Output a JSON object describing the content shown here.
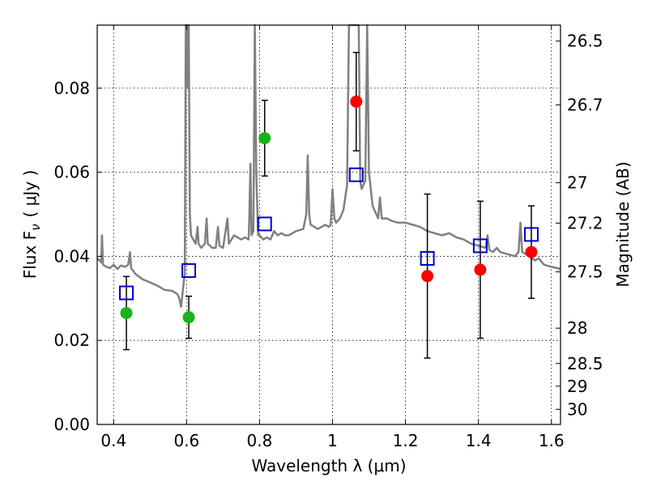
{
  "chart_data": {
    "type": "scatter",
    "xlabel": "Wavelength  λ (μm)",
    "ylabel": "Flux  F",
    "ylabel_sub": "ν",
    "ylabel_unit": "( μJy )",
    "y2label": "Magnitude (AB)",
    "xlim": [
      0.355,
      1.625
    ],
    "ylim": [
      0.0,
      0.095
    ],
    "grid": true,
    "x_ticks": [
      0.4,
      0.6,
      0.8,
      1.0,
      1.2,
      1.4,
      1.6
    ],
    "x_tick_labels": [
      "0.4",
      "0.6",
      "0.8",
      "1",
      "1.2",
      "1.4",
      "1.6"
    ],
    "y_ticks": [
      0.0,
      0.02,
      0.04,
      0.06,
      0.08
    ],
    "y_tick_labels": [
      "0.00",
      "0.02",
      "0.04",
      "0.06",
      "0.08"
    ],
    "mag_ticks": [
      {
        "label": "26.5",
        "flux": 0.0912
      },
      {
        "label": "26.7",
        "flux": 0.076
      },
      {
        "label": "27",
        "flux": 0.0575
      },
      {
        "label": "27.2",
        "flux": 0.0479
      },
      {
        "label": "27.5",
        "flux": 0.0363
      },
      {
        "label": "28",
        "flux": 0.0229
      },
      {
        "label": "28.5",
        "flux": 0.0145
      },
      {
        "label": "29",
        "flux": 0.0091
      },
      {
        "label": "30",
        "flux": 0.0036
      }
    ],
    "colors": {
      "spectrum": "#808080",
      "observed_optical": "#1ab31a",
      "observed_nir": "#ff0000",
      "model": "#0000cc",
      "errorbar": "#000000"
    },
    "series": [
      {
        "key": "observed_optical",
        "points": [
          {
            "x": 0.435,
            "y": 0.0265,
            "err": 0.0087
          },
          {
            "x": 0.606,
            "y": 0.0255,
            "err": 0.005
          },
          {
            "x": 0.814,
            "y": 0.0681,
            "err": 0.009
          }
        ]
      },
      {
        "key": "observed_nir",
        "points": [
          {
            "x": 1.065,
            "y": 0.0768,
            "err": 0.0117
          },
          {
            "x": 1.26,
            "y": 0.0353,
            "err": 0.0195
          },
          {
            "x": 1.405,
            "y": 0.0368,
            "err": 0.0163
          },
          {
            "x": 1.545,
            "y": 0.041,
            "err": 0.011
          }
        ]
      },
      {
        "key": "model",
        "points": [
          {
            "x": 0.435,
            "y": 0.0313
          },
          {
            "x": 0.606,
            "y": 0.0366
          },
          {
            "x": 0.814,
            "y": 0.0477
          },
          {
            "x": 1.065,
            "y": 0.0594
          },
          {
            "x": 1.26,
            "y": 0.0395
          },
          {
            "x": 1.405,
            "y": 0.0425
          },
          {
            "x": 1.545,
            "y": 0.0452
          }
        ]
      }
    ],
    "spectrum": [
      [
        0.355,
        0.0395
      ],
      [
        0.362,
        0.039
      ],
      [
        0.366,
        0.0385
      ],
      [
        0.368,
        0.045
      ],
      [
        0.371,
        0.038
      ],
      [
        0.38,
        0.0375
      ],
      [
        0.39,
        0.0372
      ],
      [
        0.4,
        0.038
      ],
      [
        0.41,
        0.037
      ],
      [
        0.42,
        0.0378
      ],
      [
        0.432,
        0.0375
      ],
      [
        0.44,
        0.038
      ],
      [
        0.445,
        0.041
      ],
      [
        0.448,
        0.0372
      ],
      [
        0.46,
        0.0358
      ],
      [
        0.48,
        0.0345
      ],
      [
        0.5,
        0.0338
      ],
      [
        0.52,
        0.033
      ],
      [
        0.54,
        0.032
      ],
      [
        0.56,
        0.0318
      ],
      [
        0.575,
        0.031
      ],
      [
        0.58,
        0.03
      ],
      [
        0.585,
        0.028
      ],
      [
        0.59,
        0.032
      ],
      [
        0.595,
        0.036
      ],
      [
        0.598,
        0.095
      ],
      [
        0.601,
        0.095
      ],
      [
        0.603,
        0.08
      ],
      [
        0.606,
        0.095
      ],
      [
        0.609,
        0.05
      ],
      [
        0.612,
        0.045
      ],
      [
        0.618,
        0.044
      ],
      [
        0.625,
        0.043
      ],
      [
        0.63,
        0.047
      ],
      [
        0.633,
        0.043
      ],
      [
        0.64,
        0.042
      ],
      [
        0.65,
        0.043
      ],
      [
        0.655,
        0.049
      ],
      [
        0.658,
        0.043
      ],
      [
        0.67,
        0.042
      ],
      [
        0.68,
        0.042
      ],
      [
        0.686,
        0.047
      ],
      [
        0.69,
        0.0425
      ],
      [
        0.7,
        0.042
      ],
      [
        0.712,
        0.049
      ],
      [
        0.716,
        0.043
      ],
      [
        0.73,
        0.045
      ],
      [
        0.75,
        0.044
      ],
      [
        0.76,
        0.0445
      ],
      [
        0.77,
        0.044
      ],
      [
        0.772,
        0.049
      ],
      [
        0.775,
        0.062
      ],
      [
        0.778,
        0.045
      ],
      [
        0.783,
        0.046
      ],
      [
        0.787,
        0.095
      ],
      [
        0.791,
        0.06
      ],
      [
        0.796,
        0.045
      ],
      [
        0.8,
        0.045
      ],
      [
        0.81,
        0.044
      ],
      [
        0.82,
        0.0445
      ],
      [
        0.83,
        0.044
      ],
      [
        0.84,
        0.046
      ],
      [
        0.85,
        0.045
      ],
      [
        0.86,
        0.0455
      ],
      [
        0.87,
        0.045
      ],
      [
        0.88,
        0.045
      ],
      [
        0.89,
        0.0455
      ],
      [
        0.9,
        0.046
      ],
      [
        0.92,
        0.0465
      ],
      [
        0.928,
        0.05
      ],
      [
        0.932,
        0.064
      ],
      [
        0.936,
        0.05
      ],
      [
        0.94,
        0.0475
      ],
      [
        0.96,
        0.0465
      ],
      [
        0.97,
        0.047
      ],
      [
        0.98,
        0.0475
      ],
      [
        0.99,
        0.047
      ],
      [
        0.995,
        0.0475
      ],
      [
        1.0,
        0.056
      ],
      [
        1.005,
        0.049
      ],
      [
        1.01,
        0.048
      ],
      [
        1.02,
        0.049
      ],
      [
        1.03,
        0.051
      ],
      [
        1.04,
        0.057
      ],
      [
        1.045,
        0.095
      ],
      [
        1.055,
        0.095
      ],
      [
        1.065,
        0.095
      ],
      [
        1.072,
        0.095
      ],
      [
        1.076,
        0.058
      ],
      [
        1.08,
        0.056
      ],
      [
        1.09,
        0.058
      ],
      [
        1.095,
        0.095
      ],
      [
        1.1,
        0.06
      ],
      [
        1.11,
        0.052
      ],
      [
        1.12,
        0.05
      ],
      [
        1.125,
        0.049
      ],
      [
        1.13,
        0.054
      ],
      [
        1.135,
        0.049
      ],
      [
        1.15,
        0.049
      ],
      [
        1.16,
        0.0485
      ],
      [
        1.18,
        0.048
      ],
      [
        1.2,
        0.048
      ],
      [
        1.22,
        0.0475
      ],
      [
        1.24,
        0.047
      ],
      [
        1.26,
        0.046
      ],
      [
        1.28,
        0.0455
      ],
      [
        1.3,
        0.045
      ],
      [
        1.32,
        0.0455
      ],
      [
        1.34,
        0.0445
      ],
      [
        1.36,
        0.044
      ],
      [
        1.38,
        0.043
      ],
      [
        1.4,
        0.0425
      ],
      [
        1.42,
        0.042
      ],
      [
        1.425,
        0.045
      ],
      [
        1.43,
        0.0415
      ],
      [
        1.44,
        0.041
      ],
      [
        1.45,
        0.042
      ],
      [
        1.46,
        0.041
      ],
      [
        1.48,
        0.0405
      ],
      [
        1.5,
        0.04
      ],
      [
        1.51,
        0.041
      ],
      [
        1.515,
        0.048
      ],
      [
        1.52,
        0.041
      ],
      [
        1.53,
        0.0405
      ],
      [
        1.54,
        0.04
      ],
      [
        1.555,
        0.039
      ],
      [
        1.565,
        0.0395
      ],
      [
        1.58,
        0.038
      ],
      [
        1.6,
        0.0375
      ],
      [
        1.625,
        0.037
      ]
    ]
  }
}
